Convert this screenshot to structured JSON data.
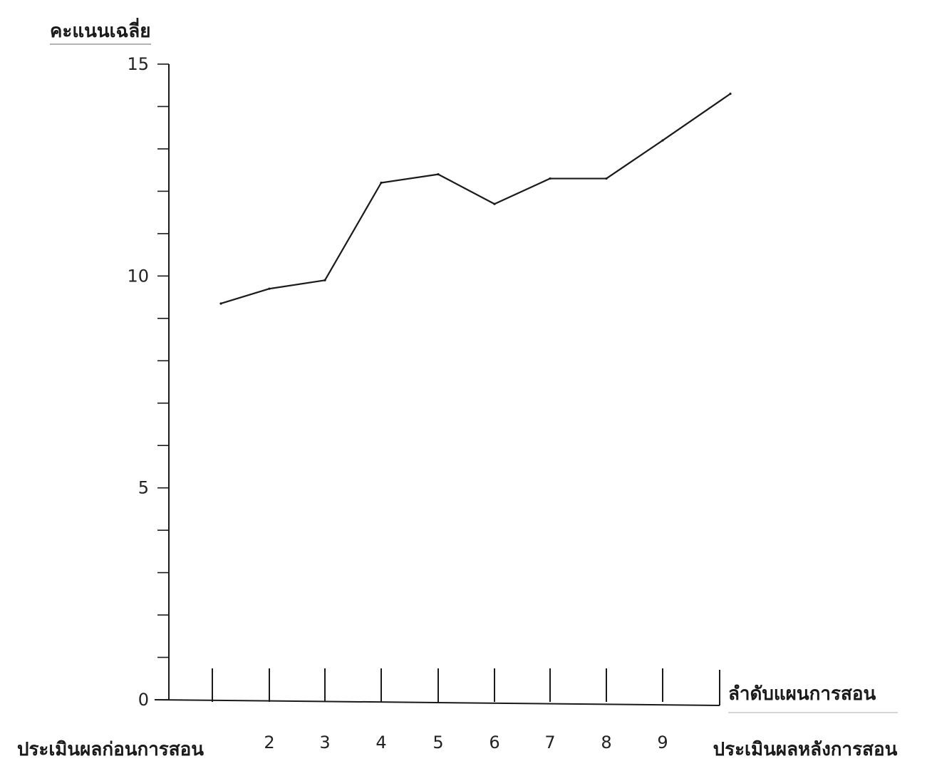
{
  "chart_data": {
    "type": "line",
    "ylabel": "คะแนนเฉลี่ย",
    "xlabel": "ลำดับแผนการสอน",
    "categories": [
      "ประเมินผลก่อนการสอน",
      "2",
      "3",
      "4",
      "5",
      "6",
      "7",
      "8",
      "9",
      "ประเมินผลหลังการสอน"
    ],
    "values": [
      9.35,
      9.7,
      9.9,
      12.2,
      12.4,
      11.7,
      12.3,
      12.3,
      13.2,
      14.3
    ],
    "ylim": [
      0,
      15
    ],
    "yticks": [
      0,
      5,
      10,
      15
    ],
    "ytick_labels": [
      "0",
      "5",
      "10",
      "15"
    ],
    "y_minor_step": 1,
    "grid": false,
    "line_color": "#1a1a1a"
  }
}
